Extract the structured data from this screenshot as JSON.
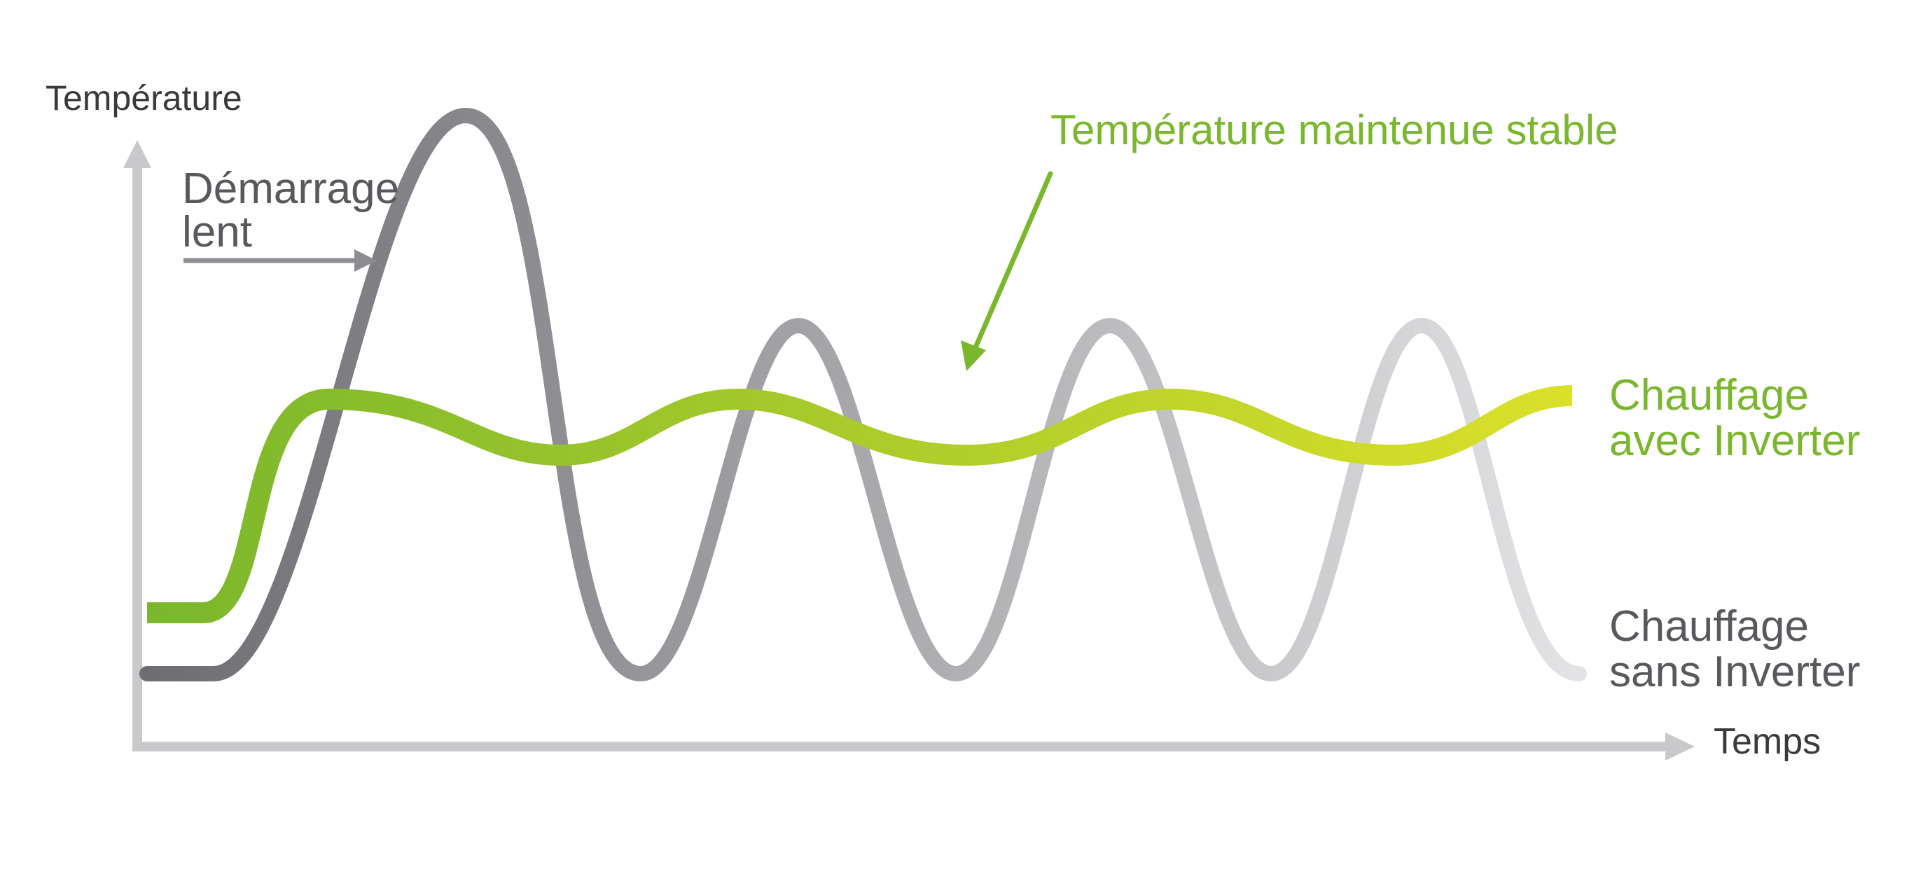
{
  "diagram": {
    "y_axis_label": "Température",
    "x_axis_label": "Temps",
    "slow_start_line1": "Démarrage",
    "slow_start_line2": "lent",
    "stable_annotation": "Température maintenue stable",
    "inverter_label_line1": "Chauffage",
    "inverter_label_line2": "avec Inverter",
    "no_inverter_label_line1": "Chauffage",
    "no_inverter_label_line2": "sans Inverter"
  },
  "colors": {
    "axis": "#c9c9cc",
    "axis_text": "#3a3a3a",
    "label_gray": "#58585d",
    "annotation_green": "#7ab72c",
    "inverter_start": "#7ab72c",
    "inverter_end": "#dbe02a",
    "no_inverter_start": "#6d6d72",
    "no_inverter_end": "#e3e3e5"
  }
}
